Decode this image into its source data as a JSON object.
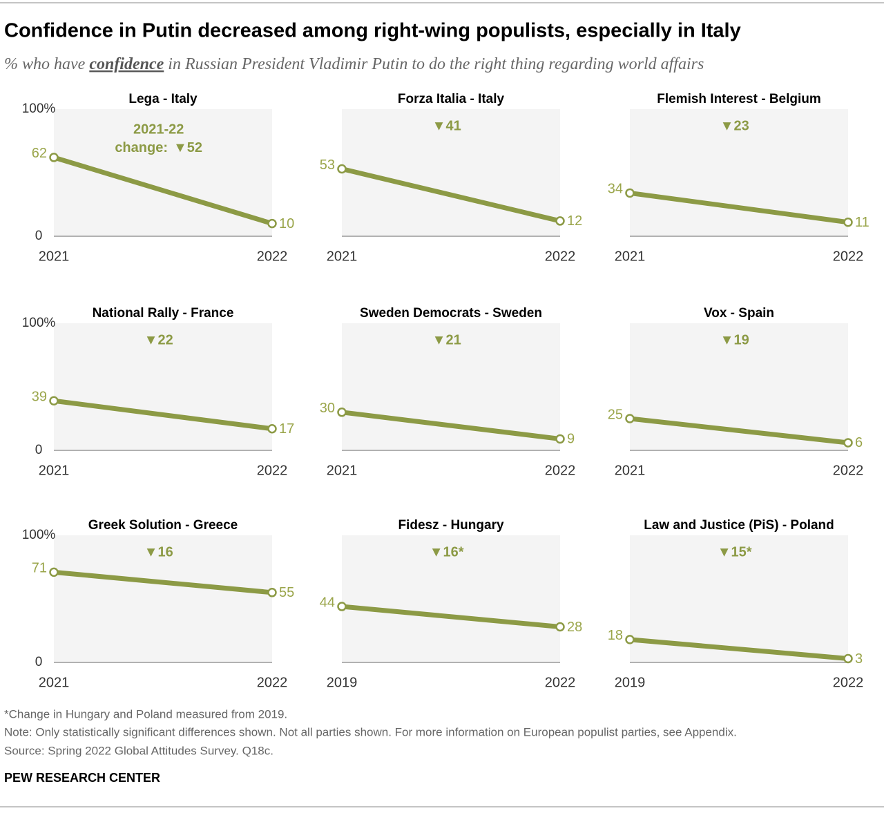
{
  "title": "Confidence in Putin decreased among right-wing populists, especially in Italy",
  "subtitle": {
    "before": "% who have ",
    "emphasis": "confidence",
    "after": " in Russian President Vladimir Putin to do the right thing regarding world affairs"
  },
  "footnote": "*Change in Hungary and Poland measured from 2019.",
  "note": "Note: Only statistically significant differences shown. Not all parties shown. For more information on European populist parties, see Appendix.",
  "source": "Source: Spring 2022 Global Attitudes Survey. Q18c.",
  "brand": "PEW RESEARCH CENTER",
  "chart_data": [
    {
      "type": "line",
      "title": "Lega - Italy",
      "categories": [
        "2021",
        "2022"
      ],
      "values": [
        62,
        10
      ],
      "color": "#8c9a45",
      "ylim": [
        0,
        100
      ],
      "yticks": [
        0,
        {
          "value": 100,
          "label": "100%"
        }
      ],
      "annotation_heading": "2021-22",
      "annotation_prefix": "change:",
      "annotation": "▼52"
    },
    {
      "type": "line",
      "title": "Forza Italia - Italy",
      "categories": [
        "2021",
        "2022"
      ],
      "values": [
        53,
        12
      ],
      "color": "#8c9a45",
      "ylim": [
        0,
        100
      ],
      "annotation": "▼41"
    },
    {
      "type": "line",
      "title": "Flemish Interest - Belgium",
      "categories": [
        "2021",
        "2022"
      ],
      "values": [
        34,
        11
      ],
      "color": "#8c9a45",
      "ylim": [
        0,
        100
      ],
      "annotation": "▼23"
    },
    {
      "type": "line",
      "title": "National Rally - France",
      "categories": [
        "2021",
        "2022"
      ],
      "values": [
        39,
        17
      ],
      "color": "#8c9a45",
      "ylim": [
        0,
        100
      ],
      "yticks": [
        0,
        {
          "value": 100,
          "label": "100%"
        }
      ],
      "annotation": "▼22"
    },
    {
      "type": "line",
      "title": "Sweden Democrats - Sweden",
      "categories": [
        "2021",
        "2022"
      ],
      "values": [
        30,
        9
      ],
      "color": "#8c9a45",
      "ylim": [
        0,
        100
      ],
      "annotation": "▼21"
    },
    {
      "type": "line",
      "title": "Vox - Spain",
      "categories": [
        "2021",
        "2022"
      ],
      "values": [
        25,
        6
      ],
      "color": "#8c9a45",
      "ylim": [
        0,
        100
      ],
      "annotation": "▼19"
    },
    {
      "type": "line",
      "title": "Greek Solution - Greece",
      "categories": [
        "2021",
        "2022"
      ],
      "values": [
        71,
        55
      ],
      "color": "#8c9a45",
      "ylim": [
        0,
        100
      ],
      "yticks": [
        0,
        {
          "value": 100,
          "label": "100%"
        }
      ],
      "annotation": "▼16"
    },
    {
      "type": "line",
      "title": "Fidesz - Hungary",
      "categories": [
        "2019",
        "2022"
      ],
      "values": [
        44,
        28
      ],
      "color": "#8c9a45",
      "ylim": [
        0,
        100
      ],
      "annotation": "▼16*"
    },
    {
      "type": "line",
      "title": "Law and Justice (PiS) - Poland",
      "categories": [
        "2019",
        "2022"
      ],
      "values": [
        18,
        3
      ],
      "color": "#8c9a45",
      "ylim": [
        0,
        100
      ],
      "annotation": "▼15*"
    }
  ]
}
